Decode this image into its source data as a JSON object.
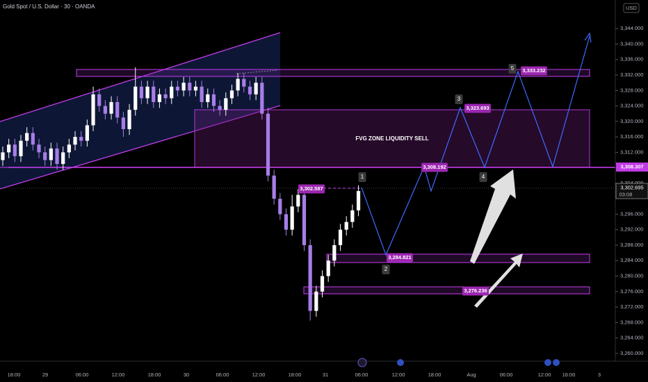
{
  "chart_data": {
    "type": "candlestick",
    "title": "Gold Spot / U.S. Dollar · 30 · OANDA",
    "currency": "USD",
    "up_color": "#ffffff",
    "down_color": "#a77de8",
    "ylim": [
      3258,
      3351.4
    ],
    "yticks": [
      {
        "value": 3260,
        "label": "3,260.000"
      },
      {
        "value": 3264,
        "label": "3,264.000"
      },
      {
        "value": 3268,
        "label": "3,268.000"
      },
      {
        "value": 3272,
        "label": "3,272.000"
      },
      {
        "value": 3276,
        "label": "3,276.000"
      },
      {
        "value": 3280,
        "label": "3,280.000"
      },
      {
        "value": 3284,
        "label": "3,284.000"
      },
      {
        "value": 3288,
        "label": "3,288.000"
      },
      {
        "value": 3292,
        "label": "3,292.000"
      },
      {
        "value": 3296,
        "label": "3,296.000"
      },
      {
        "value": 3304,
        "label": "3,304.000"
      },
      {
        "value": 3312,
        "label": "3,312.000"
      },
      {
        "value": 3316,
        "label": "3,316.000"
      },
      {
        "value": 3320,
        "label": "3,320.000"
      },
      {
        "value": 3324,
        "label": "3,324.000"
      },
      {
        "value": 3328,
        "label": "3,328.000"
      },
      {
        "value": 3332,
        "label": "3,332.000"
      },
      {
        "value": 3336,
        "label": "3,336.000"
      },
      {
        "value": 3340,
        "label": "3,340.000"
      },
      {
        "value": 3344,
        "label": "3,344.000"
      }
    ],
    "xlabels": [
      "18:00",
      "29",
      "06:00",
      "12:00",
      "18:00",
      "30",
      "06:00",
      "12:00",
      "18:00",
      "31",
      "06:00",
      "12:00",
      "18:00",
      "Aug",
      "06:00",
      "12:00",
      "16:00",
      "3"
    ],
    "open": [
      3310,
      3312,
      3314,
      3311,
      3315,
      3317,
      3314,
      3312,
      3310,
      3313,
      3309,
      3312,
      3314,
      3316,
      3315,
      3319,
      3327,
      3324,
      3322,
      3325,
      3321,
      3318,
      3323,
      3329,
      3326,
      3329,
      3325,
      3327,
      3326,
      3329,
      3328,
      3330,
      3328,
      3329,
      3325,
      3327,
      3324,
      3323,
      3326,
      3328,
      3331,
      3329,
      3327,
      3330,
      3322,
      3306,
      3300,
      3296,
      3292,
      3298,
      3301,
      3288,
      3271,
      3276,
      3280,
      3284,
      3288,
      3292,
      3294,
      3297
    ],
    "high": [
      3313.5,
      3315.5,
      3315.5,
      3316.5,
      3318.5,
      3318.5,
      3315.5,
      3313.5,
      3314.5,
      3314.5,
      3313.5,
      3315.5,
      3317.5,
      3317.5,
      3320.5,
      3329,
      3328.5,
      3325.5,
      3326.5,
      3326.5,
      3322.5,
      3324.5,
      3334,
      3330.5,
      3330.5,
      3330.5,
      3328.5,
      3328.5,
      3330.5,
      3330.5,
      3331.5,
      3331.5,
      3330.5,
      3330.5,
      3328.5,
      3328.5,
      3325.5,
      3327.5,
      3329.5,
      3332.5,
      3332.5,
      3330.5,
      3331.5,
      3331.5,
      3323.5,
      3307.5,
      3301.5,
      3297.5,
      3301,
      3302.5,
      3302.5,
      3289.5,
      3277.5,
      3281.5,
      3285.5,
      3289.5,
      3293.5,
      3295.5,
      3298.5,
      3303.5
    ],
    "low": [
      3308.5,
      3310.5,
      3309.5,
      3309.5,
      3313.5,
      3312.5,
      3310.5,
      3308.5,
      3308.5,
      3307.5,
      3307.5,
      3310.5,
      3312.5,
      3313.5,
      3313.5,
      3317.5,
      3322.5,
      3320.5,
      3320.5,
      3319.5,
      3316,
      3316.5,
      3321.5,
      3324.5,
      3324.5,
      3323.5,
      3323.5,
      3324.5,
      3324.5,
      3326.5,
      3326.5,
      3326.5,
      3326.5,
      3323.5,
      3323.5,
      3322.5,
      3321.5,
      3321.5,
      3324.5,
      3326.5,
      3327.5,
      3325.5,
      3325.5,
      3320.5,
      3304.5,
      3298.5,
      3294.5,
      3290.5,
      3290.5,
      3296.5,
      3286.5,
      3268.5,
      3269.5,
      3274.5,
      3278.5,
      3282.5,
      3286.5,
      3290.5,
      3292.5,
      3295.5
    ],
    "close": [
      3312,
      3314,
      3311,
      3315,
      3317,
      3314,
      3312,
      3310,
      3313,
      3309,
      3312,
      3314,
      3316,
      3315,
      3319,
      3327,
      3324,
      3322,
      3325,
      3321,
      3318,
      3323,
      3329,
      3326,
      3329,
      3325,
      3327,
      3326,
      3329,
      3328,
      3330,
      3328,
      3329,
      3325,
      3327,
      3324,
      3323,
      3326,
      3328,
      3331,
      3329,
      3327,
      3330,
      3322,
      3306,
      3300,
      3296,
      3292,
      3298,
      3301,
      3288,
      3271,
      3276,
      3280,
      3284,
      3288,
      3292,
      3294,
      3297,
      3302
    ],
    "zone_label": "FVG ZONE LIQUIDITY SELL",
    "price_labels": [
      "3,302.587",
      "3,308.192",
      "3,323.693",
      "3,333.232",
      "3,284.821",
      "3,276.236"
    ],
    "wave_labels": [
      "1",
      "2",
      "3",
      "4",
      "5"
    ],
    "level_label": "3,308.307",
    "last_price_label": "3,302.695",
    "countdown": "03:08"
  }
}
